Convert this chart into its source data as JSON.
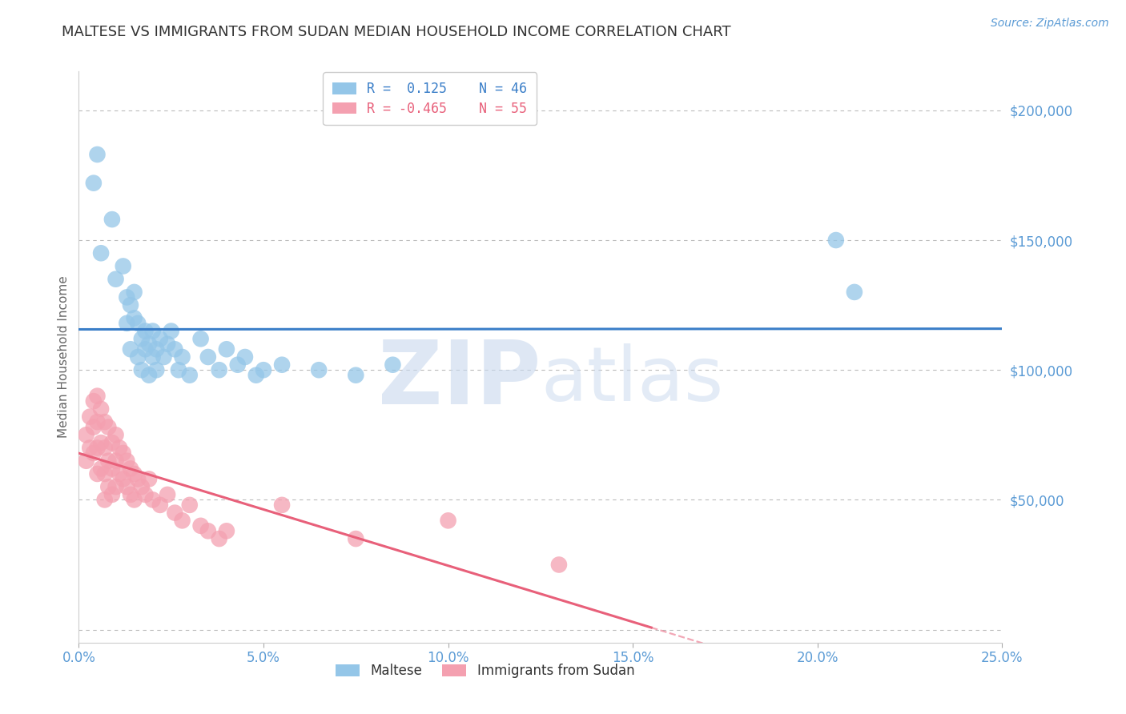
{
  "title": "MALTESE VS IMMIGRANTS FROM SUDAN MEDIAN HOUSEHOLD INCOME CORRELATION CHART",
  "source_text": "Source: ZipAtlas.com",
  "ylabel": "Median Household Income",
  "xlim": [
    0.0,
    0.25
  ],
  "ylim": [
    -5000,
    215000
  ],
  "xticks": [
    0.0,
    0.05,
    0.1,
    0.15,
    0.2,
    0.25
  ],
  "xticklabels": [
    "0.0%",
    "5.0%",
    "10.0%",
    "15.0%",
    "20.0%",
    "25.0%"
  ],
  "yticks": [
    0,
    50000,
    100000,
    150000,
    200000
  ],
  "yticklabels": [
    "",
    "$50,000",
    "$100,000",
    "$150,000",
    "$200,000"
  ],
  "grid_color": "#bbbbbb",
  "background_color": "#ffffff",
  "series1_label": "Maltese",
  "series1_R": "0.125",
  "series1_N": "46",
  "series1_color": "#94c6e8",
  "series1_line_color": "#3a7ec8",
  "series2_label": "Immigrants from Sudan",
  "series2_R": "-0.465",
  "series2_N": "55",
  "series2_color": "#f4a0b0",
  "series2_line_color": "#e8607a",
  "watermark_zip": "ZIP",
  "watermark_atlas": "atlas",
  "axis_label_color": "#5b9bd5",
  "title_color": "#333333",
  "title_fontsize": 13,
  "series1_x": [
    0.004,
    0.005,
    0.006,
    0.009,
    0.01,
    0.012,
    0.013,
    0.013,
    0.014,
    0.014,
    0.015,
    0.015,
    0.016,
    0.016,
    0.017,
    0.017,
    0.018,
    0.018,
    0.019,
    0.019,
    0.02,
    0.02,
    0.021,
    0.021,
    0.022,
    0.023,
    0.024,
    0.025,
    0.026,
    0.027,
    0.028,
    0.03,
    0.033,
    0.035,
    0.038,
    0.04,
    0.043,
    0.045,
    0.048,
    0.05,
    0.055,
    0.065,
    0.075,
    0.085,
    0.205,
    0.21
  ],
  "series1_y": [
    172000,
    183000,
    145000,
    158000,
    135000,
    140000,
    128000,
    118000,
    125000,
    108000,
    120000,
    130000,
    105000,
    118000,
    112000,
    100000,
    115000,
    108000,
    98000,
    110000,
    105000,
    115000,
    100000,
    108000,
    112000,
    105000,
    110000,
    115000,
    108000,
    100000,
    105000,
    98000,
    112000,
    105000,
    100000,
    108000,
    102000,
    105000,
    98000,
    100000,
    102000,
    100000,
    98000,
    102000,
    150000,
    130000
  ],
  "series2_x": [
    0.002,
    0.002,
    0.003,
    0.003,
    0.004,
    0.004,
    0.004,
    0.005,
    0.005,
    0.005,
    0.005,
    0.006,
    0.006,
    0.006,
    0.007,
    0.007,
    0.007,
    0.007,
    0.008,
    0.008,
    0.008,
    0.009,
    0.009,
    0.009,
    0.01,
    0.01,
    0.01,
    0.011,
    0.011,
    0.012,
    0.012,
    0.013,
    0.013,
    0.014,
    0.014,
    0.015,
    0.015,
    0.016,
    0.017,
    0.018,
    0.019,
    0.02,
    0.022,
    0.024,
    0.026,
    0.028,
    0.03,
    0.033,
    0.035,
    0.038,
    0.04,
    0.055,
    0.075,
    0.1,
    0.13
  ],
  "series2_y": [
    75000,
    65000,
    82000,
    70000,
    88000,
    78000,
    68000,
    90000,
    80000,
    70000,
    60000,
    85000,
    72000,
    62000,
    80000,
    70000,
    60000,
    50000,
    78000,
    65000,
    55000,
    72000,
    62000,
    52000,
    75000,
    65000,
    55000,
    70000,
    60000,
    68000,
    58000,
    65000,
    55000,
    62000,
    52000,
    60000,
    50000,
    58000,
    55000,
    52000,
    58000,
    50000,
    48000,
    52000,
    45000,
    42000,
    48000,
    40000,
    38000,
    35000,
    38000,
    48000,
    35000,
    42000,
    25000
  ],
  "trend1_x0": 0.0,
  "trend1_x1": 0.25,
  "trend2_solid_end": 0.155,
  "trend2_x1": 0.25
}
